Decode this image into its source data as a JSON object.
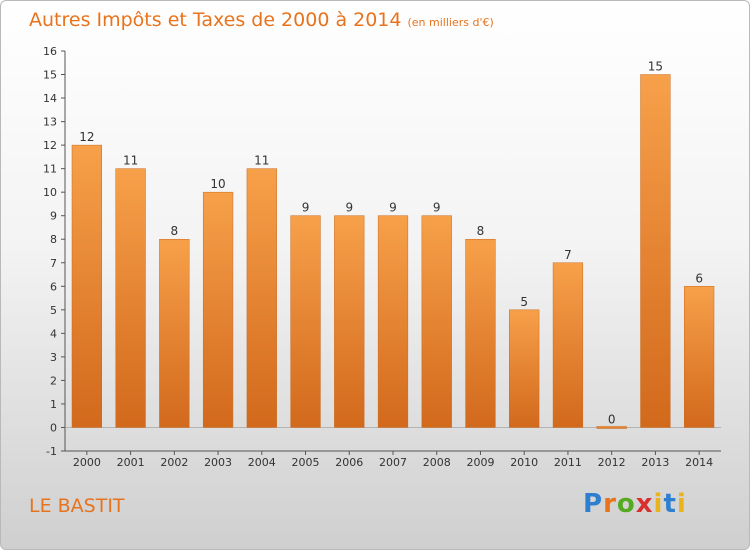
{
  "chart_data": {
    "type": "bar",
    "title": "Autres Impôts et Taxes de 2000 à 2014",
    "unit": "(en milliers d'€)",
    "categories": [
      "2000",
      "2001",
      "2002",
      "2003",
      "2004",
      "2005",
      "2006",
      "2007",
      "2008",
      "2009",
      "2010",
      "2011",
      "2012",
      "2013",
      "2014"
    ],
    "values": [
      12,
      11,
      8,
      10,
      11,
      9,
      9,
      9,
      9,
      8,
      5,
      7,
      0,
      15,
      6
    ],
    "ylim": [
      -1,
      16
    ],
    "yticks": [
      -1,
      0,
      1,
      2,
      3,
      4,
      5,
      6,
      7,
      8,
      9,
      10,
      11,
      12,
      13,
      14,
      15,
      16
    ],
    "xlabel": "",
    "ylabel": "",
    "grid": false,
    "bar_color": "#f08a2a"
  },
  "commune": "LE BASTIT",
  "logo": "Proxiti"
}
